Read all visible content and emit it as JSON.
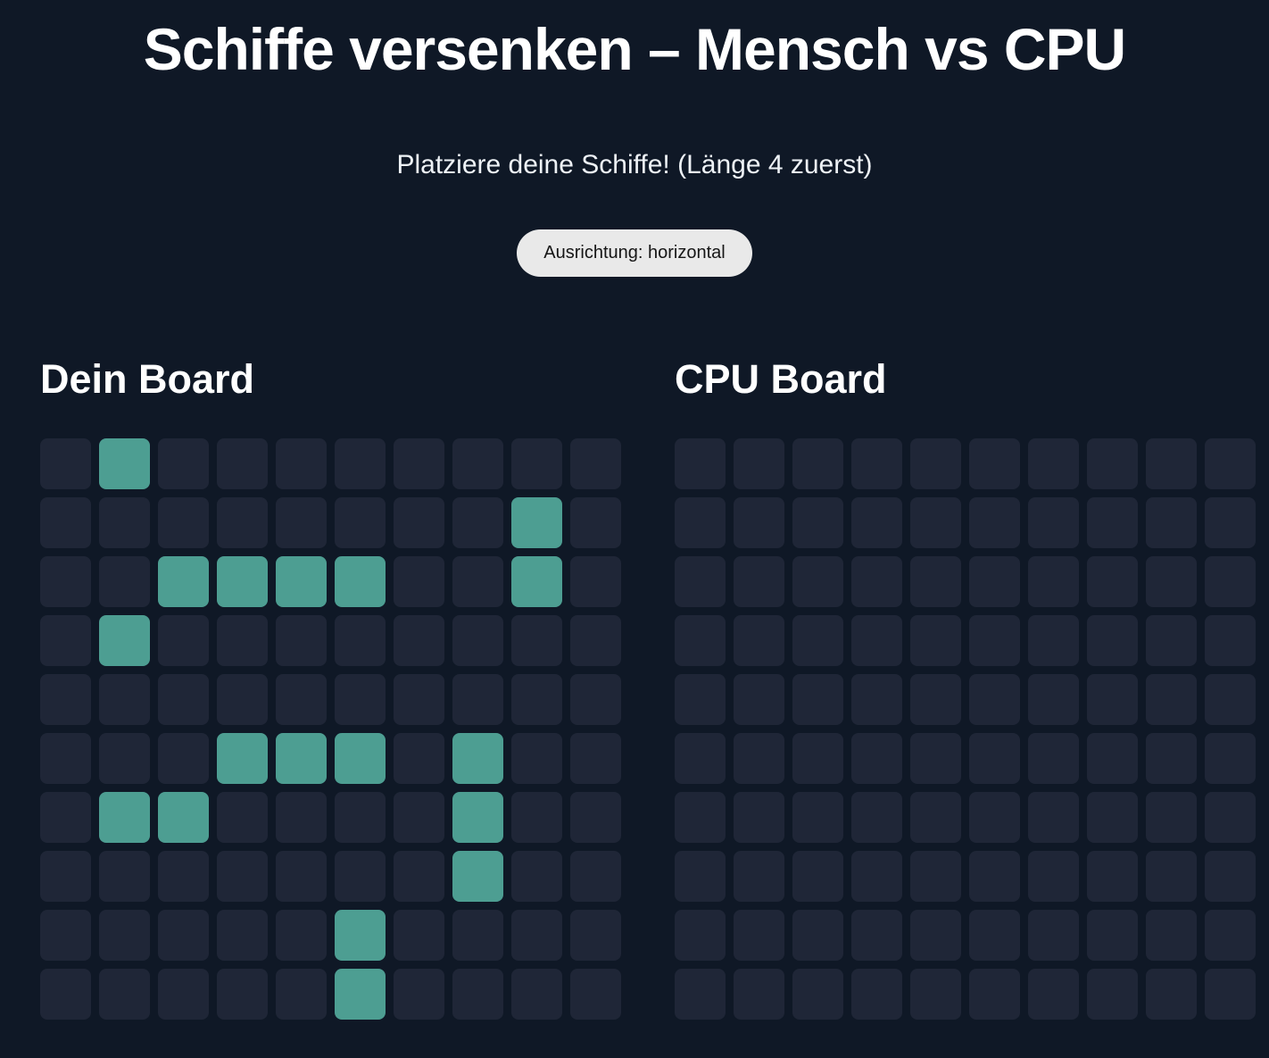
{
  "title": "Schiffe versenken – Mensch vs CPU",
  "subtitle": "Platziere deine Schiffe! (Länge 4 zuerst)",
  "controls": {
    "orientation_button": "Ausrichtung: horizontal"
  },
  "boards": {
    "player": {
      "title": "Dein Board",
      "rows": 10,
      "cols": 10,
      "ship_cells": [
        [
          0,
          1
        ],
        [
          1,
          8
        ],
        [
          2,
          2
        ],
        [
          2,
          3
        ],
        [
          2,
          4
        ],
        [
          2,
          5
        ],
        [
          2,
          8
        ],
        [
          3,
          1
        ],
        [
          5,
          3
        ],
        [
          5,
          4
        ],
        [
          5,
          5
        ],
        [
          5,
          7
        ],
        [
          6,
          1
        ],
        [
          6,
          2
        ],
        [
          6,
          7
        ],
        [
          7,
          7
        ],
        [
          8,
          5
        ],
        [
          9,
          5
        ]
      ]
    },
    "cpu": {
      "title": "CPU Board",
      "rows": 10,
      "cols": 10,
      "ship_cells": []
    }
  },
  "colors": {
    "page_bg": "#0f1826",
    "cell_bg": "#1f2637",
    "ship": "#4d9e92",
    "button_bg": "#e9e9e9",
    "button_text": "#161616",
    "text": "#ffffff"
  }
}
